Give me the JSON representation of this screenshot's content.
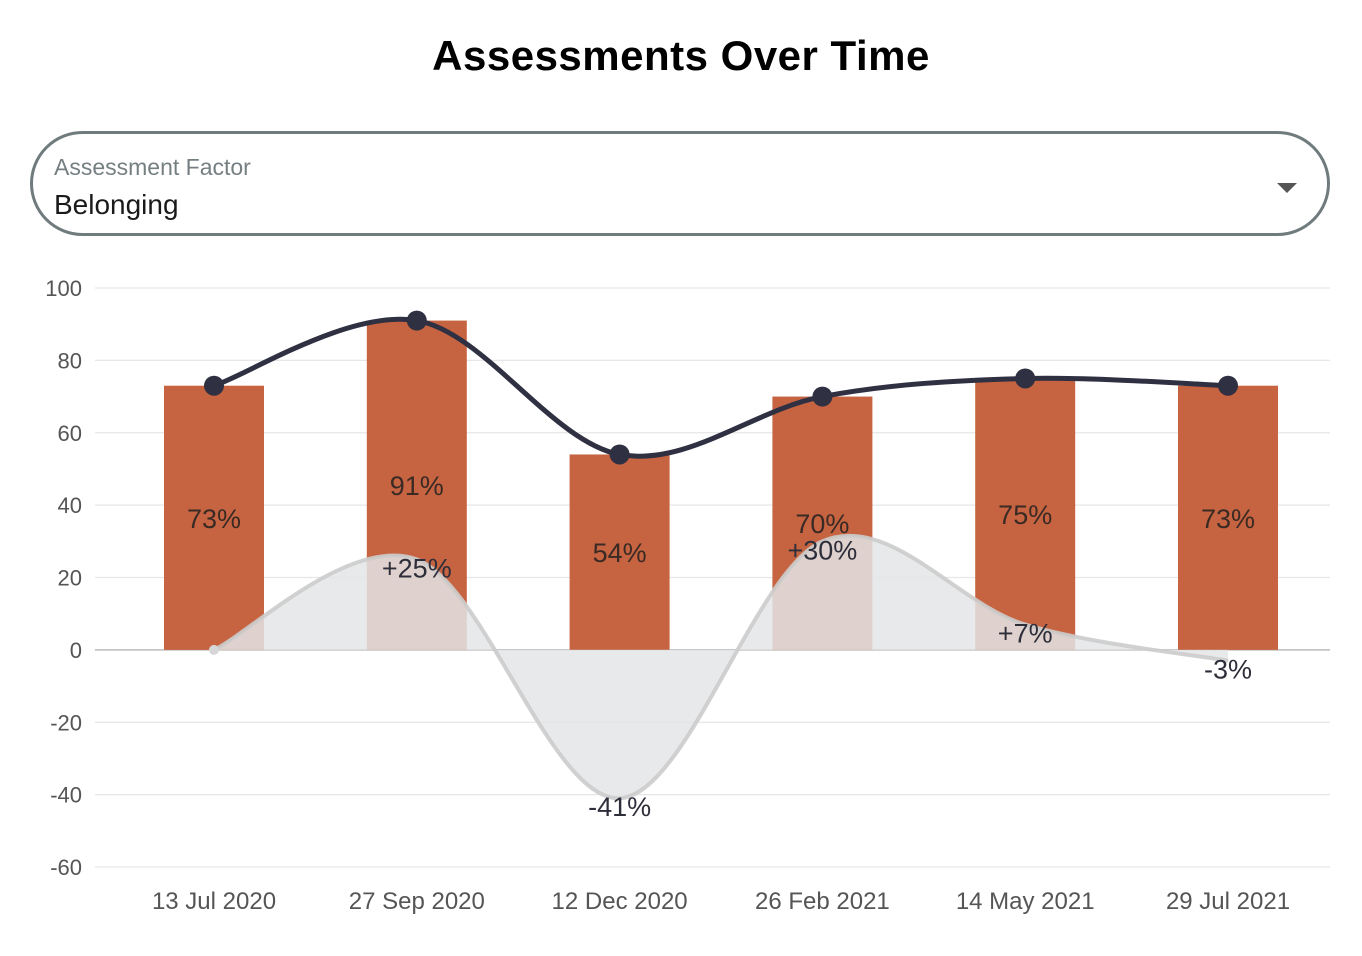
{
  "page": {
    "title": "Assessments Over Time"
  },
  "selector": {
    "label": "Assessment Factor",
    "value": "Belonging",
    "arrow_icon": "chevron-down-icon"
  },
  "colors": {
    "bar": "#c66442",
    "line": "#2f3042",
    "change_area": "#e3e5e6",
    "change_line": "#cccccc",
    "grid": "#e6e6e6",
    "zero_line": "#bbbbbb"
  },
  "chart_data": {
    "type": "bar",
    "categories": [
      "13 Jul 2020",
      "27 Sep 2020",
      "12 Dec 2020",
      "26 Feb 2021",
      "14 May 2021",
      "29 Jul 2021"
    ],
    "series": [
      {
        "type": "bar",
        "values": [
          73,
          91,
          54,
          70,
          75,
          73
        ],
        "labels": [
          "73%",
          "91%",
          "54%",
          "70%",
          "75%",
          "73%"
        ]
      },
      {
        "type": "line",
        "values": [
          73,
          91,
          54,
          70,
          75,
          73
        ]
      },
      {
        "type": "area",
        "values": [
          0,
          25,
          -41,
          30,
          7,
          -3
        ],
        "labels": [
          "",
          "+25%",
          "-41%",
          "+30%",
          "+7%",
          "-3%"
        ]
      }
    ],
    "ylim": [
      -60,
      100
    ],
    "yticks": [
      100,
      80,
      60,
      40,
      20,
      0,
      -20,
      -40,
      -60
    ],
    "title": "",
    "xlabel": "",
    "ylabel": "",
    "grid": true,
    "legend": "none"
  }
}
